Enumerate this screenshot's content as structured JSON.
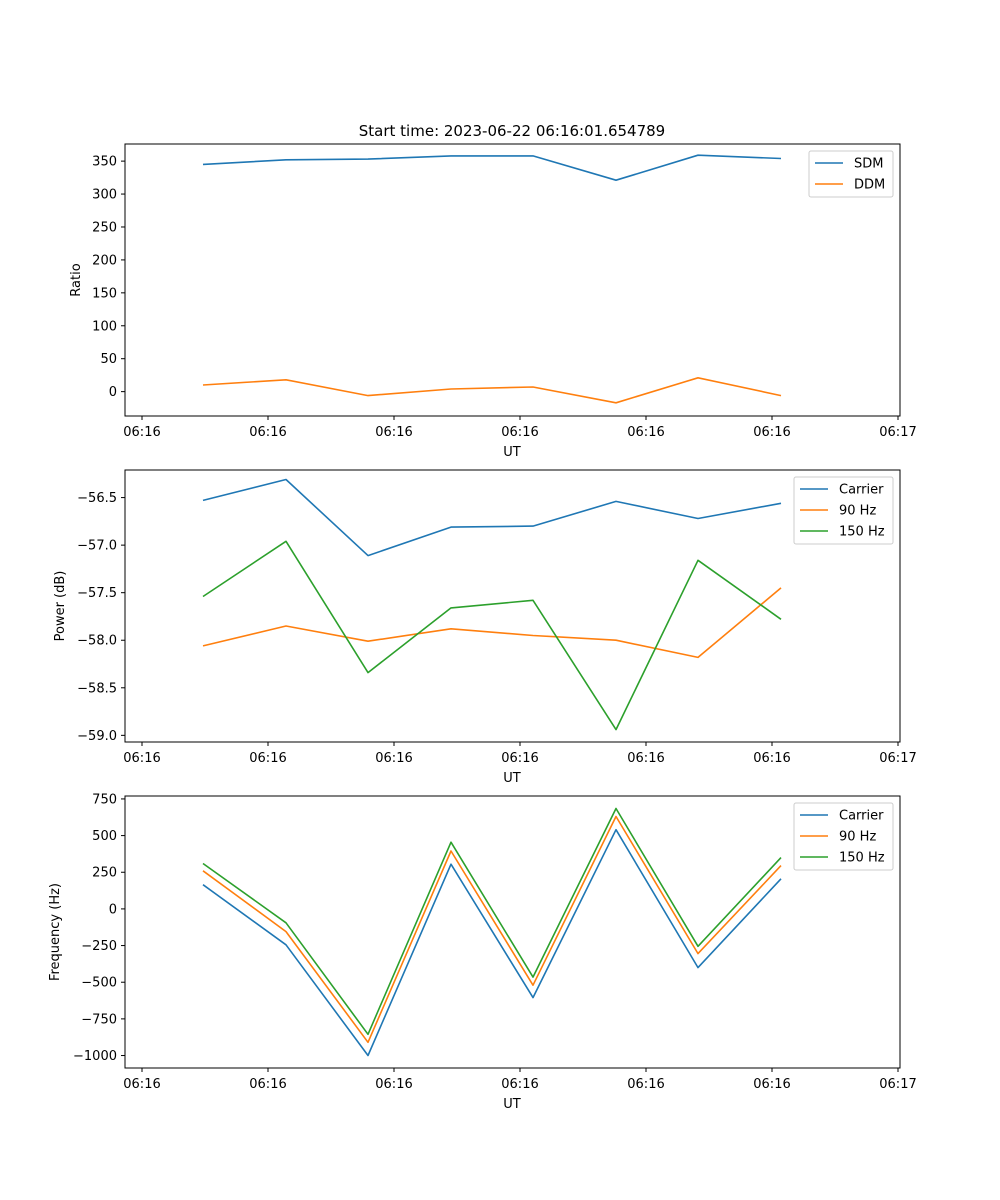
{
  "figure": {
    "title": "Start time: 2023-06-22 06:16:01.654789"
  },
  "chart_data": [
    {
      "type": "line",
      "title": "Start time: 2023-06-22 06:16:01.654789",
      "xlabel": "UT",
      "ylabel": "Ratio",
      "x_tick_labels": [
        "06:16",
        "06:16",
        "06:16",
        "06:16",
        "06:16",
        "06:16",
        "06:17"
      ],
      "ylim": [
        -37,
        376
      ],
      "y_ticks": [
        0,
        50,
        100,
        150,
        200,
        250,
        300,
        350
      ],
      "legend_position": "top-right",
      "grid": false,
      "series": [
        {
          "name": "SDM",
          "color": "#1f77b4",
          "values": [
            345,
            352,
            353,
            358,
            358,
            321,
            359,
            354
          ]
        },
        {
          "name": "DDM",
          "color": "#ff7f0e",
          "values": [
            10,
            18,
            -6,
            4,
            7,
            -17,
            21,
            -6
          ]
        }
      ]
    },
    {
      "type": "line",
      "title": "",
      "xlabel": "UT",
      "ylabel": "Power (dB)",
      "x_tick_labels": [
        "06:16",
        "06:16",
        "06:16",
        "06:16",
        "06:16",
        "06:16",
        "06:17"
      ],
      "ylim": [
        -59.07,
        -56.21
      ],
      "y_ticks": [
        -59.0,
        -58.5,
        -58.0,
        -57.5,
        -57.0,
        -56.5
      ],
      "y_tick_labels": [
        "−59.0",
        "−58.5",
        "−58.0",
        "−57.5",
        "−57.0",
        "−56.5"
      ],
      "legend_position": "top-right",
      "grid": false,
      "series": [
        {
          "name": "Carrier",
          "color": "#1f77b4",
          "values": [
            -56.53,
            -56.31,
            -57.11,
            -56.81,
            -56.8,
            -56.54,
            -56.72,
            -56.56
          ]
        },
        {
          "name": "90 Hz",
          "color": "#ff7f0e",
          "values": [
            -58.06,
            -57.85,
            -58.01,
            -57.88,
            -57.95,
            -58.0,
            -58.18,
            -57.45
          ]
        },
        {
          "name": "150 Hz",
          "color": "#2ca02c",
          "values": [
            -57.54,
            -56.96,
            -58.34,
            -57.66,
            -57.58,
            -58.94,
            -57.16,
            -57.78
          ]
        }
      ]
    },
    {
      "type": "line",
      "title": "",
      "xlabel": "UT",
      "ylabel": "Frequency (Hz)",
      "x_tick_labels": [
        "06:16",
        "06:16",
        "06:16",
        "06:16",
        "06:16",
        "06:16",
        "06:17"
      ],
      "ylim": [
        -1085,
        770
      ],
      "y_ticks": [
        -1000,
        -750,
        -500,
        -250,
        0,
        250,
        500,
        750
      ],
      "y_tick_labels": [
        "−1000",
        "−750",
        "−500",
        "−250",
        "0",
        "250",
        "500",
        "750"
      ],
      "legend_position": "top-right",
      "grid": false,
      "series": [
        {
          "name": "Carrier",
          "color": "#1f77b4",
          "values": [
            165,
            -245,
            -1000,
            305,
            -605,
            540,
            -400,
            205
          ]
        },
        {
          "name": "90 Hz",
          "color": "#ff7f0e",
          "values": [
            260,
            -155,
            -910,
            395,
            -520,
            630,
            -305,
            295
          ]
        },
        {
          "name": "150 Hz",
          "color": "#2ca02c",
          "values": [
            310,
            -95,
            -855,
            455,
            -465,
            685,
            -255,
            350
          ]
        }
      ]
    }
  ]
}
